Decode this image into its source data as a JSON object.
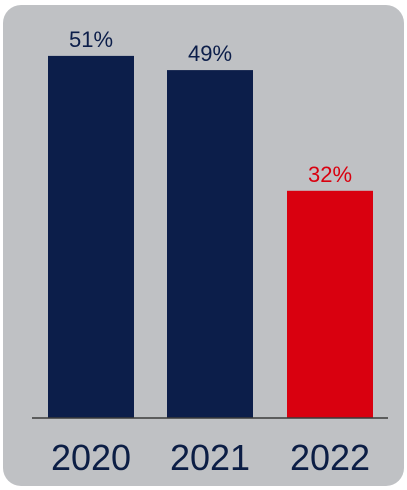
{
  "chart_data": {
    "type": "bar",
    "categories": [
      "2020",
      "2021",
      "2022"
    ],
    "values": [
      51,
      49,
      32
    ],
    "value_labels": [
      "51%",
      "49%",
      "32%"
    ],
    "unit": "%",
    "title": "",
    "xlabel": "",
    "ylabel": "",
    "ylim": [
      0,
      60
    ],
    "grid": false,
    "legend": "none",
    "bar_colors": [
      "#0c1e4a",
      "#0c1e4a",
      "#d9000f"
    ],
    "label_colors": [
      "#0c1e4a",
      "#0c1e4a",
      "#d9000f"
    ],
    "axis_color": "#3a3a3a",
    "background": "#bfc1c4"
  }
}
